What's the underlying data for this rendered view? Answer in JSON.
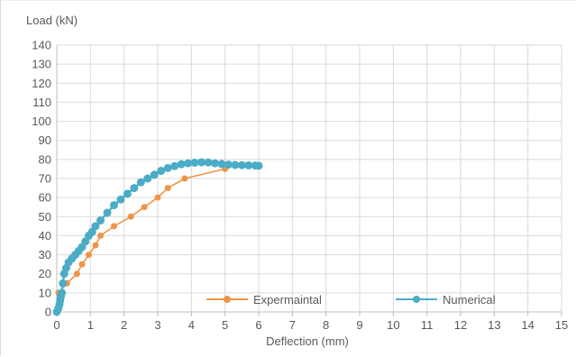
{
  "chart_data": {
    "type": "line",
    "title": "",
    "xlabel": "Deflection (mm)",
    "ylabel": "Load (kN)",
    "xlim": [
      0,
      15
    ],
    "ylim": [
      0,
      140
    ],
    "x_ticks": [
      "0",
      "1",
      "2",
      "3",
      "4",
      "5",
      "6",
      "7",
      "8",
      "9",
      "10",
      "11",
      "12",
      "13",
      "14",
      "15"
    ],
    "y_ticks": [
      "0",
      "10",
      "20",
      "30",
      "40",
      "50",
      "60",
      "70",
      "80",
      "90",
      "100",
      "110",
      "120",
      "130",
      "140"
    ],
    "grid": true,
    "legend_position": "bottom-right",
    "series": [
      {
        "name": "Expermaintal",
        "color": "#ed9547",
        "marker": "circle",
        "points": [
          [
            0,
            0
          ],
          [
            0.05,
            10
          ],
          [
            0.3,
            15
          ],
          [
            0.6,
            20
          ],
          [
            0.75,
            25
          ],
          [
            0.95,
            30
          ],
          [
            1.15,
            35
          ],
          [
            1.3,
            40
          ],
          [
            1.7,
            45
          ],
          [
            2.2,
            50
          ],
          [
            2.6,
            55
          ],
          [
            3.0,
            60
          ],
          [
            3.3,
            65
          ],
          [
            3.8,
            70
          ],
          [
            5.0,
            75
          ]
        ]
      },
      {
        "name": "Numerical",
        "color": "#4bacc6",
        "marker": "circle",
        "points": [
          [
            0,
            0
          ],
          [
            0.05,
            2
          ],
          [
            0.08,
            4
          ],
          [
            0.1,
            6
          ],
          [
            0.12,
            8
          ],
          [
            0.15,
            10
          ],
          [
            0.18,
            15
          ],
          [
            0.22,
            20
          ],
          [
            0.28,
            23
          ],
          [
            0.35,
            26
          ],
          [
            0.45,
            28
          ],
          [
            0.55,
            30
          ],
          [
            0.65,
            32
          ],
          [
            0.75,
            34
          ],
          [
            0.85,
            37
          ],
          [
            0.95,
            40
          ],
          [
            1.05,
            42
          ],
          [
            1.15,
            45
          ],
          [
            1.3,
            48
          ],
          [
            1.5,
            52
          ],
          [
            1.7,
            56
          ],
          [
            1.9,
            59
          ],
          [
            2.1,
            62
          ],
          [
            2.3,
            65
          ],
          [
            2.5,
            68
          ],
          [
            2.7,
            70
          ],
          [
            2.9,
            72
          ],
          [
            3.1,
            74
          ],
          [
            3.3,
            75.5
          ],
          [
            3.5,
            76.5
          ],
          [
            3.7,
            77.5
          ],
          [
            3.9,
            78
          ],
          [
            4.1,
            78.3
          ],
          [
            4.3,
            78.5
          ],
          [
            4.5,
            78.4
          ],
          [
            4.7,
            78
          ],
          [
            4.9,
            77.6
          ],
          [
            5.1,
            77.3
          ],
          [
            5.3,
            77.1
          ],
          [
            5.5,
            77
          ],
          [
            5.7,
            76.9
          ],
          [
            5.9,
            76.8
          ],
          [
            6.0,
            76.7
          ]
        ]
      }
    ]
  }
}
